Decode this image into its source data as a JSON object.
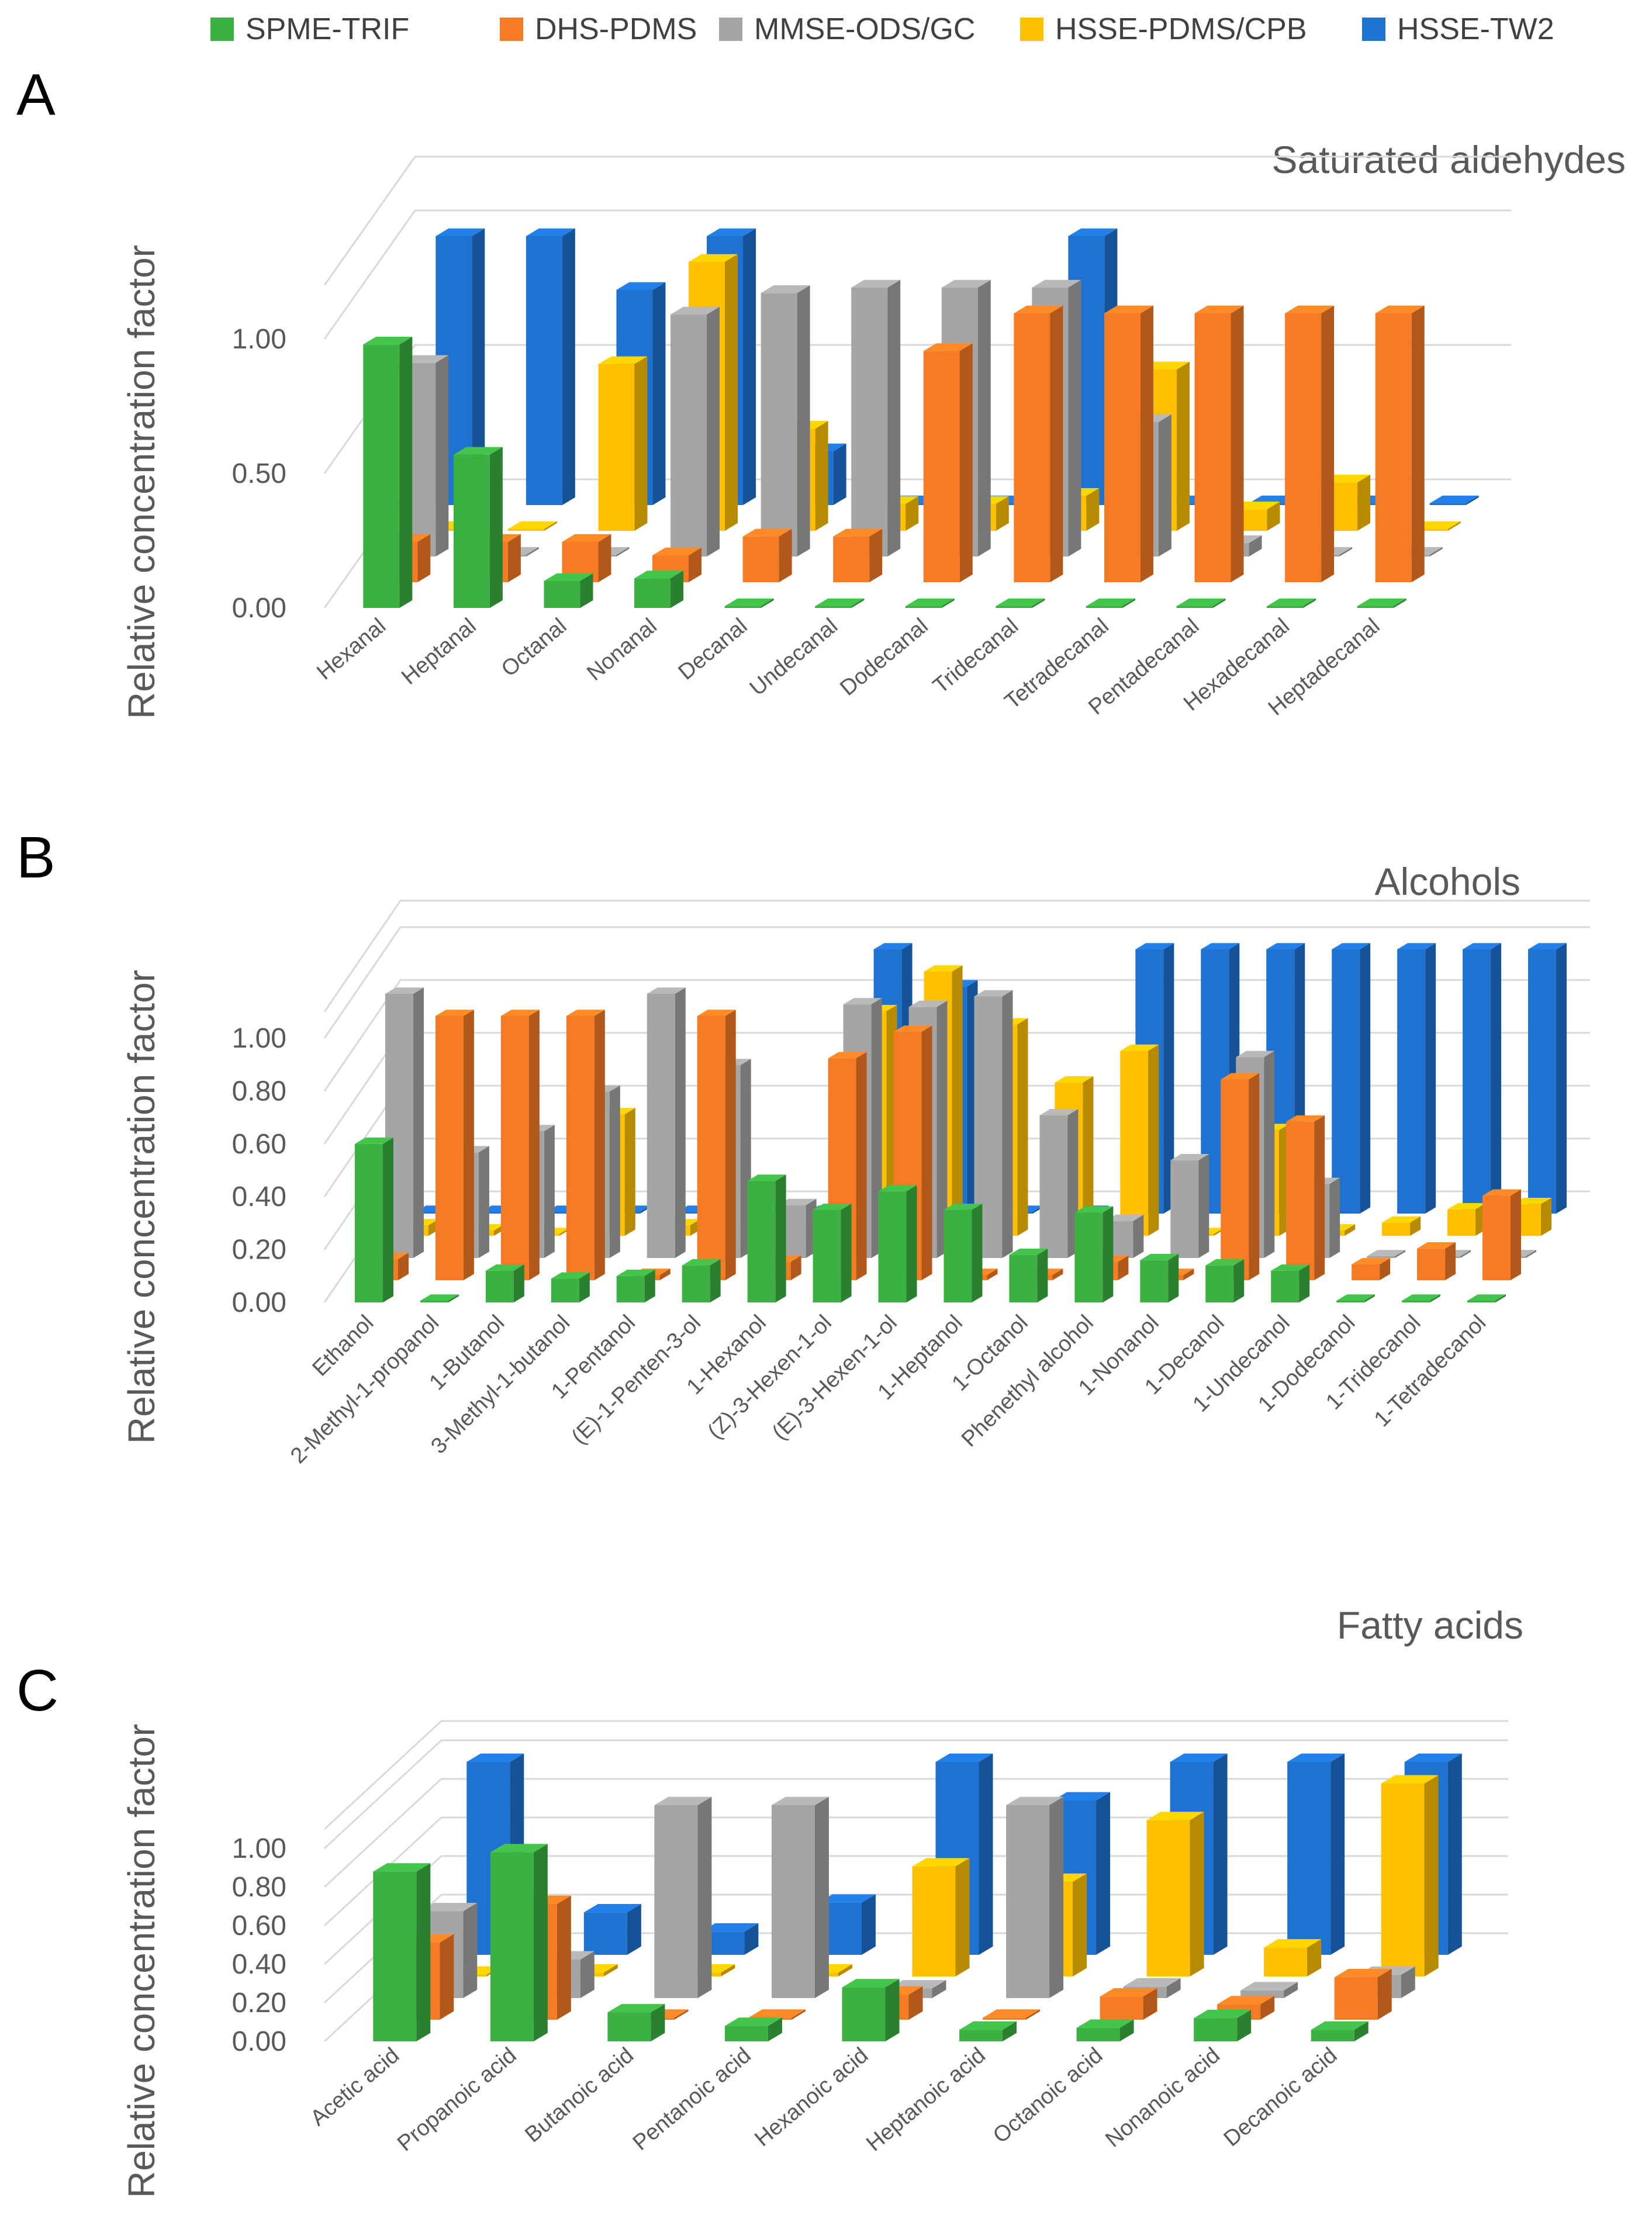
{
  "legend": [
    {
      "name": "SPME-TRIF",
      "color": "#3cb043"
    },
    {
      "name": "DHS-PDMS",
      "color": "#f57c24"
    },
    {
      "name": "MMSE-ODS/GC",
      "color": "#a5a5a5"
    },
    {
      "name": "HSSE-PDMS/CPB",
      "color": "#ffc000"
    },
    {
      "name": "HSSE-TW2",
      "color": "#1f72d0"
    }
  ],
  "chart_data": [
    {
      "panel": "A",
      "type": "bar",
      "title": "Saturated aldehydes",
      "ylabel": "Relative concentration factor",
      "yticks": [
        "0.00",
        "0.50",
        "1.00"
      ],
      "ylim": [
        0,
        1.2
      ],
      "categories": [
        "Hexanal",
        "Heptanal",
        "Octanal",
        "Nonanal",
        "Decanal",
        "Undecanal",
        "Dodecanal",
        "Tridecanal",
        "Tetradecanal",
        "Pentadecanal",
        "Hexadecanal",
        "Heptadecanal"
      ],
      "series": [
        {
          "name": "SPME-TRIF",
          "values": [
            0.98,
            0.57,
            0.1,
            0.11,
            0,
            0,
            0,
            0,
            0,
            0,
            0,
            0
          ]
        },
        {
          "name": "DHS-PDMS",
          "values": [
            0.15,
            0.15,
            0.15,
            0.1,
            0.17,
            0.17,
            0.86,
            1.0,
            1.0,
            1.0,
            1.0,
            1.0
          ]
        },
        {
          "name": "MMSE-ODS/GC",
          "values": [
            0.72,
            0,
            0,
            0.9,
            0.98,
            1.0,
            1.0,
            1.0,
            0.5,
            0.05,
            0,
            0
          ]
        },
        {
          "name": "HSSE-PDMS/CPB",
          "values": [
            0,
            0,
            0.62,
            1.0,
            0.38,
            0.1,
            0.1,
            0.13,
            0.6,
            0.08,
            0.18,
            0
          ]
        },
        {
          "name": "HSSE-TW2",
          "values": [
            1.0,
            1.0,
            0.8,
            1.0,
            0.2,
            0,
            0,
            1.0,
            0,
            0,
            0,
            0
          ]
        }
      ]
    },
    {
      "panel": "B",
      "type": "bar",
      "title": "Alcohols",
      "ylabel": "Relative concentration factor",
      "yticks": [
        "0.00",
        "0.20",
        "0.40",
        "0.60",
        "0.80",
        "1.00"
      ],
      "ylim": [
        0,
        1.1
      ],
      "categories": [
        "Ethanol",
        "2-Methyl-1-propanol",
        "1-Butanol",
        "3-Methyl-1-butanol",
        "1-Pentanol",
        "(E)-1-Penten-3-ol",
        "1-Hexanol",
        "(Z)-3-Hexen-1-ol",
        "(E)-3-Hexen-1-ol",
        "1-Heptanol",
        "1-Octanol",
        "Phenethyl alcohol",
        "1-Nonanol",
        "1-Decanol",
        "1-Undecanol",
        "1-Dodecanol",
        "1-Tridecanol",
        "1-Tetradecanol"
      ],
      "series": [
        {
          "name": "SPME-TRIF",
          "values": [
            0.6,
            0,
            0.12,
            0.09,
            0.1,
            0.14,
            0.46,
            0.35,
            0.42,
            0.35,
            0.18,
            0.34,
            0.16,
            0.14,
            0.12,
            0,
            0,
            0
          ]
        },
        {
          "name": "DHS-PDMS",
          "values": [
            0.08,
            1.0,
            1.0,
            1.0,
            0.02,
            1.0,
            0.07,
            0.84,
            0.94,
            0.02,
            0.02,
            0.07,
            0.02,
            0.76,
            0.6,
            0.06,
            0.12,
            0.32
          ]
        },
        {
          "name": "MMSE-ODS/GC",
          "values": [
            1.0,
            0.4,
            0.48,
            0.63,
            1.0,
            0.73,
            0.2,
            0.96,
            0.95,
            0.99,
            0.54,
            0.14,
            0.37,
            0.76,
            0.28,
            0,
            0,
            0
          ]
        },
        {
          "name": "HSSE-PDMS/CPB",
          "values": [
            0.04,
            0.02,
            0,
            0.46,
            0.04,
            0,
            0,
            0.85,
            1.0,
            0.8,
            0.58,
            0.7,
            0,
            0.4,
            0.02,
            0.05,
            0.1,
            0.12
          ]
        },
        {
          "name": "HSSE-TW2",
          "values": [
            0,
            0,
            0,
            0,
            0,
            0,
            0,
            1.0,
            0.86,
            0,
            0,
            1.0,
            1.0,
            1.0,
            1.0,
            1.0,
            1.0,
            1.0
          ]
        }
      ]
    },
    {
      "panel": "C",
      "type": "bar",
      "title": "Fatty acids",
      "ylabel": "Relative concentration factor",
      "yticks": [
        "0.00",
        "0.20",
        "0.40",
        "0.60",
        "0.80",
        "1.00"
      ],
      "ylim": [
        0,
        1.1
      ],
      "categories": [
        "Acetic acid",
        "Propanoic acid",
        "Butanoic acid",
        "Pentanoic acid",
        "Hexanoic acid",
        "Heptanoic acid",
        "Octanoic acid",
        "Nonanoic acid",
        "Decanoic acid"
      ],
      "series": [
        {
          "name": "SPME-TRIF",
          "values": [
            0.88,
            0.98,
            0.15,
            0.08,
            0.28,
            0.06,
            0.07,
            0.12,
            0.06
          ]
        },
        {
          "name": "DHS-PDMS",
          "values": [
            0.4,
            0.6,
            0.01,
            0.01,
            0.13,
            0.01,
            0.12,
            0.08,
            0.22
          ]
        },
        {
          "name": "MMSE-ODS/GC",
          "values": [
            0.45,
            0.2,
            1.0,
            1.0,
            0.05,
            1.0,
            0.06,
            0.04,
            0.12
          ]
        },
        {
          "name": "HSSE-PDMS/CPB",
          "values": [
            0,
            0.02,
            0.02,
            0.02,
            0.57,
            0.49,
            0.81,
            0.15,
            1.0
          ]
        },
        {
          "name": "HSSE-TW2",
          "values": [
            1.0,
            0.22,
            0.12,
            0.27,
            1.0,
            0.8,
            1.0,
            1.0,
            1.0
          ]
        }
      ]
    }
  ]
}
